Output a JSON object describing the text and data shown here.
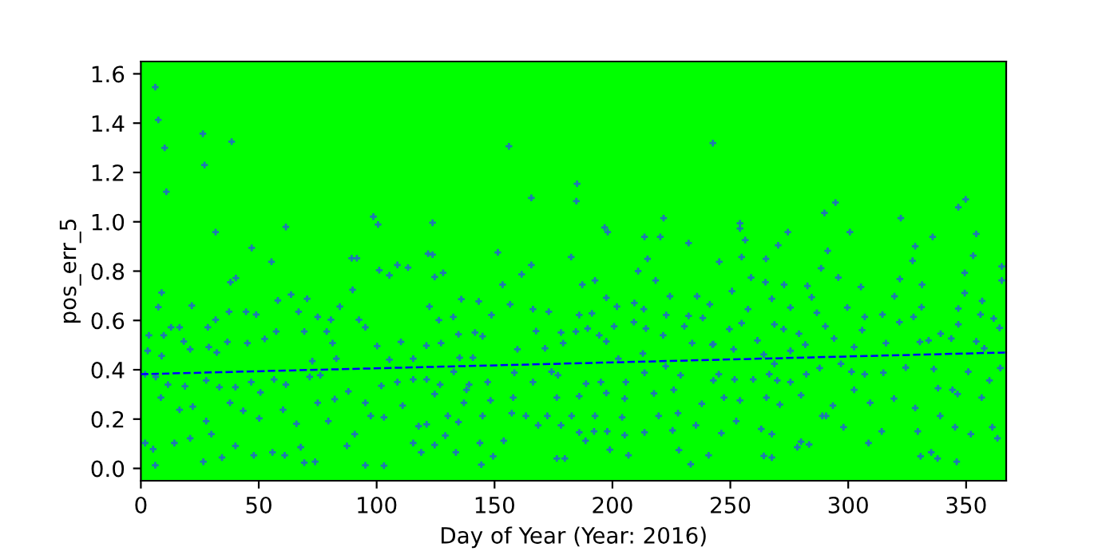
{
  "chart_data": {
    "type": "scatter",
    "xlabel": "Day of Year (Year: 2016)",
    "ylabel": "pos_err_5",
    "grid": false,
    "xlim": [
      0,
      367
    ],
    "xticks": [
      0,
      50,
      100,
      150,
      200,
      250,
      300,
      350
    ],
    "ylim": [
      -0.05,
      1.65
    ],
    "yticks": [
      {
        "value": 0,
        "label": "0.0"
      },
      0.2,
      0.4,
      0.6,
      0.8,
      {
        "value": 1,
        "label": "1.0"
      },
      1.2,
      1.4,
      1.6
    ],
    "series": [
      {
        "color": "#1f77b4",
        "marker": "cross",
        "x": [
          6.1,
          7.4,
          10.1,
          10.8,
          26.3,
          27,
          38.5,
          31.7,
          61.5,
          47,
          55.4,
          38,
          40.3,
          89.4,
          91.6,
          98.6,
          100.6,
          8.8,
          7.4,
          21.6,
          3.4,
          9.7,
          12.8,
          16.4,
          28.4,
          31.7,
          37.4,
          44.6,
          48.9,
          58.1,
          63.7,
          70.5,
          66.9,
          75,
          80.6,
          84.4,
          89.8,
          92.5,
          101.1,
          105.4,
          108.8,
          113.3,
          121.8,
          2.9,
          8.8,
          18.2,
          20.9,
          28.8,
          32.2,
          36.7,
          45.2,
          52.5,
          57.4,
          69.3,
          78.8,
          72.7,
          81.3,
          82.9,
          95.2,
          100.2,
          105.4,
          110.3,
          115.5,
          121.1,
          1.8,
          6.3,
          11.5,
          18.7,
          27.7,
          33.3,
          40.1,
          46.8,
          50.7,
          56.5,
          61.5,
          71.6,
          76.1,
          82.2,
          88,
          95.2,
          102,
          108.8,
          115.5,
          8.5,
          16.4,
          22,
          27.7,
          37.8,
          43.4,
          50.2,
          60.3,
          66,
          75,
          79.5,
          90.7,
          97.5,
          103.1,
          111,
          117.8,
          1.8,
          5.2,
          14.2,
          20.9,
          26.5,
          29.9,
          34.4,
          40.1,
          47.9,
          55.8,
          61,
          69.3,
          73.9,
          67.8,
          87.4,
          95.2,
          103.1,
          115.5,
          118.9,
          6.1,
          156.1,
          185,
          184.7,
          165.6,
          242.6,
          123.7,
          123.7,
          151.4,
          196.7,
          198,
          213.6,
          220.3,
          221.7,
          232.3,
          214.9,
          210.9,
          182.5,
          165.6,
          161.5,
          128.2,
          124.6,
          153.4,
          156.6,
          187.2,
          192.6,
          218.3,
          197.4,
          209.3,
          224.4,
          235.9,
          241.3,
          122.4,
          135.9,
          143.3,
          132.5,
          148.7,
          166.3,
          173,
          185.9,
          191.3,
          201.9,
          213.3,
          222.8,
          232.3,
          126.4,
          134.7,
          141.7,
          144.9,
          167.6,
          178.2,
          184.5,
          189.5,
          194.4,
          200.7,
          209.1,
          214.2,
          221.5,
          230.5,
          238.3,
          127.3,
          140.8,
          135.2,
          159.7,
          171.4,
          179.1,
          197.4,
          202.5,
          212.9,
          233.8,
          242.4,
          121.2,
          126.9,
          132.7,
          139.2,
          147.1,
          158.4,
          166.3,
          174.2,
          176.9,
          188.8,
          195.1,
          205.7,
          213.6,
          222.6,
          228.9,
          242.8,
          124.6,
          138.1,
          148.3,
          157.9,
          176.4,
          185.9,
          197.4,
          205.2,
          217.6,
          226,
          130.2,
          137,
          144.9,
          157.3,
          163.3,
          172.4,
          182.7,
          192.6,
          204.1,
          219.6,
          227.8,
          237.9,
          121.2,
          129.1,
          134.7,
          143.8,
          153.9,
          168.5,
          178.2,
          185.9,
          192.2,
          197.8,
          205.2,
          213.6,
          225.5,
          235.4,
          124.6,
          133.6,
          144.4,
          149.4,
          176.4,
          179.8,
          188.6,
          198.9,
          206.8,
          228.2,
          233.2,
          240.8,
          294.6,
          289.9,
          349.8,
          346.7,
          254.1,
          254.1,
          322.3,
          300.7,
          274.4,
          256.3,
          335.8,
          354.3,
          328.4,
          270.3,
          291.3,
          254.8,
          245.3,
          265.1,
          353,
          327.3,
          349.4,
          288.5,
          365.1,
          258.8,
          264.9,
          250.7,
          272.8,
          282.7,
          295.8,
          305.4,
          321.9,
          331.3,
          365.1,
          319.6,
          349.4,
          356.8,
          257.5,
          267.6,
          275.5,
          284.5,
          299.6,
          314.5,
          331.1,
          346.7,
          356.1,
          249.6,
          254.8,
          268.7,
          286.7,
          290.3,
          307,
          321.7,
          327.7,
          346.7,
          361.7,
          242.8,
          251.4,
          261.5,
          272.6,
          279.1,
          294,
          305.9,
          316,
          330.4,
          339.2,
          343.7,
          354.3,
          364.2,
          275.5,
          281.8,
          302.5,
          334.1,
          357.7,
          264.2,
          268.7,
          266.5,
          269.9,
          245.1,
          251.8,
          259.7,
          275.5,
          282.2,
          287.9,
          296.9,
          301.4,
          307,
          314.9,
          324.4,
          336.3,
          344.2,
          350.9,
          359.9,
          364.5,
          247.3,
          254.1,
          265.3,
          271,
          280,
          289,
          293.5,
          302.5,
          309.3,
          319.4,
          328.4,
          338.1,
          346.4,
          356.6,
          246.2,
          252.5,
          263.1,
          267.6,
          280,
          290.6,
          298,
          308.6,
          314.2,
          329.5,
          339,
          345.3,
          352,
          361.1,
          363.3,
          264.2,
          267.6,
          283.4,
          278.4,
          330.7,
          335.2,
          337.9,
          346
        ],
        "values": [
          1.546,
          1.413,
          1.3,
          1.122,
          1.357,
          1.23,
          1.325,
          0.958,
          0.979,
          0.894,
          0.838,
          0.755,
          0.772,
          0.852,
          0.852,
          1.021,
          0.989,
          0.713,
          0.654,
          0.66,
          0.54,
          0.54,
          0.572,
          0.572,
          0.572,
          0.603,
          0.635,
          0.635,
          0.624,
          0.681,
          0.705,
          0.688,
          0.635,
          0.614,
          0.603,
          0.656,
          0.724,
          0.603,
          0.804,
          0.783,
          0.825,
          0.814,
          0.871,
          0.477,
          0.456,
          0.515,
          0.483,
          0.492,
          0.47,
          0.513,
          0.508,
          0.525,
          0.555,
          0.555,
          0.555,
          0.435,
          0.508,
          0.445,
          0.572,
          0.496,
          0.441,
          0.513,
          0.445,
          0.498,
          0.382,
          0.371,
          0.34,
          0.333,
          0.357,
          0.329,
          0.329,
          0.35,
          0.308,
          0.361,
          0.34,
          0.371,
          0.378,
          0.281,
          0.312,
          0.266,
          0.335,
          0.35,
          0.361,
          0.287,
          0.238,
          0.251,
          0.192,
          0.266,
          0.234,
          0.203,
          0.238,
          0.181,
          0.266,
          0.192,
          0.139,
          0.213,
          0.207,
          0.255,
          0.171,
          0.103,
          0.078,
          0.103,
          0.122,
          0.027,
          0.139,
          0.044,
          0.091,
          0.053,
          0.065,
          0.053,
          0.023,
          0.027,
          0.086,
          0.091,
          0.013,
          0.011,
          0.103,
          0.065,
          0.013,
          1.306,
          1.154,
          1.084,
          1.097,
          1.319,
          0.996,
          0.867,
          0.876,
          0.977,
          0.958,
          0.939,
          0.939,
          1.015,
          0.914,
          0.85,
          0.8,
          0.857,
          0.825,
          0.787,
          0.793,
          0.776,
          0.745,
          0.665,
          0.745,
          0.762,
          0.762,
          0.692,
          0.671,
          0.698,
          0.698,
          0.665,
          0.656,
          0.686,
          0.677,
          0.614,
          0.622,
          0.646,
          0.635,
          0.622,
          0.629,
          0.656,
          0.646,
          0.622,
          0.618,
          0.601,
          0.544,
          0.551,
          0.536,
          0.557,
          0.551,
          0.555,
          0.567,
          0.54,
          0.576,
          0.593,
          0.567,
          0.54,
          0.576,
          0.61,
          0.508,
          0.449,
          0.449,
          0.483,
          0.487,
          0.508,
          0.515,
          0.445,
          0.466,
          0.508,
          0.502,
          0.361,
          0.34,
          0.392,
          0.34,
          0.35,
          0.388,
          0.35,
          0.392,
          0.378,
          0.344,
          0.35,
          0.35,
          0.388,
          0.414,
          0.378,
          0.357,
          0.302,
          0.319,
          0.276,
          0.287,
          0.287,
          0.293,
          0.306,
          0.283,
          0.304,
          0.319,
          0.213,
          0.266,
          0.213,
          0.224,
          0.213,
          0.213,
          0.213,
          0.213,
          0.207,
          0.213,
          0.224,
          0.262,
          0.179,
          0.133,
          0.188,
          0.103,
          0.112,
          0.175,
          0.175,
          0.146,
          0.15,
          0.15,
          0.135,
          0.146,
          0.154,
          0.175,
          0.095,
          0.065,
          0.015,
          0.049,
          0.04,
          0.04,
          0.112,
          0.076,
          0.053,
          0.074,
          0.017,
          0.053,
          1.078,
          1.036,
          1.091,
          1.059,
          0.994,
          0.973,
          1.015,
          0.958,
          0.958,
          0.926,
          0.939,
          0.951,
          0.901,
          0.905,
          0.882,
          0.857,
          0.838,
          0.85,
          0.863,
          0.842,
          0.793,
          0.812,
          0.819,
          0.774,
          0.755,
          0.719,
          0.745,
          0.74,
          0.774,
          0.736,
          0.768,
          0.745,
          0.762,
          0.698,
          0.711,
          0.679,
          0.646,
          0.688,
          0.652,
          0.694,
          0.652,
          0.624,
          0.654,
          0.648,
          0.624,
          0.565,
          0.589,
          0.584,
          0.631,
          0.576,
          0.614,
          0.593,
          0.614,
          0.584,
          0.608,
          0.504,
          0.483,
          0.519,
          0.565,
          0.546,
          0.527,
          0.561,
          0.508,
          0.513,
          0.546,
          0.527,
          0.515,
          0.57,
          0.477,
          0.502,
          0.492,
          0.519,
          0.487,
          0.462,
          0.424,
          0.382,
          0.357,
          0.382,
          0.361,
          0.361,
          0.35,
          0.382,
          0.407,
          0.424,
          0.392,
          0.382,
          0.388,
          0.409,
          0.403,
          0.319,
          0.392,
          0.357,
          0.407,
          0.287,
          0.276,
          0.287,
          0.259,
          0.297,
          0.213,
          0.255,
          0.319,
          0.266,
          0.283,
          0.245,
          0.325,
          0.302,
          0.287,
          0.143,
          0.192,
          0.16,
          0.139,
          0.108,
          0.213,
          0.167,
          0.103,
          0.15,
          0.15,
          0.213,
          0.167,
          0.139,
          0.167,
          0.122,
          0.051,
          0.044,
          0.097,
          0.086,
          0.049,
          0.065,
          0.04,
          0.027
        ]
      },
      {
        "type": "line",
        "color": "#0000ff",
        "line_style": "dashed",
        "marker": "none",
        "x": [
          0,
          367
        ],
        "values": [
          0.382,
          0.47
        ]
      }
    ]
  }
}
